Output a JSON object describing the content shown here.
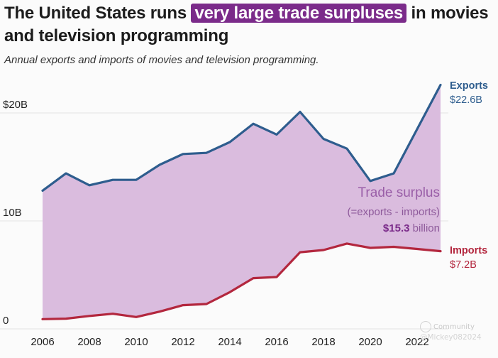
{
  "header": {
    "title_before": "The United States runs",
    "title_highlight": "very large trade surpluses",
    "title_after": "in movies and television programming",
    "subtitle": "Annual exports and imports of movies and television programming."
  },
  "colors": {
    "exports": "#2e5d8e",
    "imports": "#b3273e",
    "surplus_fill": "#d8b8dc",
    "highlight": "#7b2b8a",
    "label_surplus": "#9a5fa8",
    "grid": "#e3e3e3",
    "axis_text": "#222222"
  },
  "chart_data": {
    "type": "area",
    "title": "The United States runs very large trade surpluses in movies and television programming",
    "subtitle": "Annual exports and imports of movies and television programming.",
    "xlabel": "",
    "ylabel": "",
    "xlim": [
      2005.5,
      2023.5
    ],
    "ylim": [
      0,
      25
    ],
    "x_ticks": [
      2006,
      2008,
      2010,
      2012,
      2014,
      2016,
      2018,
      2020,
      2022
    ],
    "y_ticks": [
      {
        "value": 0,
        "label": "0"
      },
      {
        "value": 10,
        "label": "10B"
      },
      {
        "value": 20,
        "label": "$20B"
      }
    ],
    "x": [
      2006,
      2007,
      2008,
      2009,
      2010,
      2011,
      2012,
      2013,
      2014,
      2015,
      2016,
      2017,
      2018,
      2019,
      2020,
      2021,
      2022,
      2023
    ],
    "series": [
      {
        "name": "Exports",
        "values": [
          12.8,
          14.4,
          13.3,
          13.8,
          13.8,
          15.2,
          16.2,
          16.3,
          17.3,
          19.0,
          18.0,
          20.1,
          17.6,
          16.7,
          13.7,
          14.4,
          18.5,
          22.6
        ],
        "end_label": "Exports",
        "end_value_label": "$22.6B"
      },
      {
        "name": "Imports",
        "values": [
          0.9,
          0.95,
          1.2,
          1.4,
          1.1,
          1.6,
          2.2,
          2.3,
          3.4,
          4.7,
          4.8,
          7.1,
          7.3,
          7.9,
          7.5,
          7.6,
          7.4,
          7.2
        ],
        "end_label": "Imports",
        "end_value_label": "$7.2B"
      }
    ],
    "annotation": {
      "label": "Trade surplus",
      "formula": "(=exports - imports)",
      "value_bold": "$15.3",
      "value_rest": " billion"
    }
  },
  "watermark": {
    "line1": "Community",
    "line2": "@Mickey082024"
  }
}
